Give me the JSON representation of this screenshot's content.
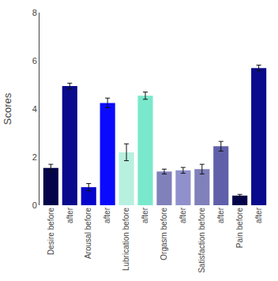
{
  "chart_data": {
    "type": "bar",
    "categories": [
      "Desire before",
      "after",
      "Arousal before",
      "after",
      "Lubrication before",
      "after",
      "Orgasm before",
      "after",
      "Satisfaction before",
      "after",
      "Pain before",
      "after"
    ],
    "values": [
      1.55,
      4.95,
      0.75,
      4.25,
      2.2,
      4.55,
      1.4,
      1.45,
      1.5,
      2.45,
      0.4,
      5.7
    ],
    "errors": [
      0.15,
      0.12,
      0.15,
      0.2,
      0.35,
      0.15,
      0.1,
      0.12,
      0.2,
      0.2,
      0.05,
      0.12
    ],
    "colors": [
      "#04044a",
      "#0a0a8c",
      "#0505cc",
      "#0a0aff",
      "#b8f0e0",
      "#7ae8cc",
      "#8080bb",
      "#9090cc",
      "#8080bb",
      "#6060aa",
      "#04044a",
      "#0a0a8c"
    ],
    "ylabel": "Scores",
    "ylim": [
      0,
      8
    ],
    "yticks": [
      0,
      2,
      4,
      6,
      8
    ],
    "grid": false
  }
}
